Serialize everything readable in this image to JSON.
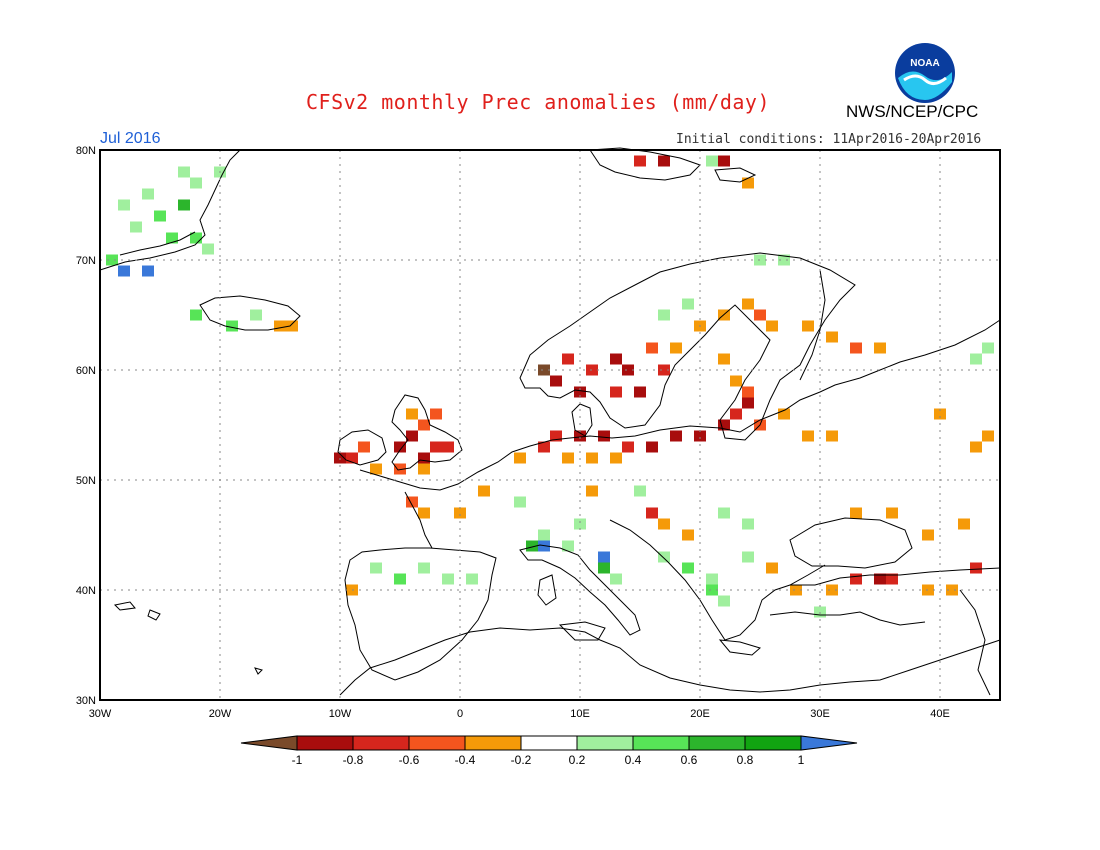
{
  "header": {
    "title": "CFSv2 monthly Prec anomalies (mm/day)",
    "agency": "NWS/NCEP/CPC",
    "month": "Jul 2016",
    "initial_conditions": "Initial conditions: 11Apr2016-20Apr2016",
    "logo_text": "NOAA"
  },
  "axes": {
    "lat_labels": [
      "80N",
      "70N",
      "60N",
      "50N",
      "40N",
      "30N"
    ],
    "lon_labels": [
      "30W",
      "20W",
      "10W",
      "0",
      "10E",
      "20E",
      "30E",
      "40E"
    ]
  },
  "colorbar": {
    "labels": [
      "-1",
      "-0.8",
      "-0.6",
      "-0.4",
      "-0.2",
      "0.2",
      "0.4",
      "0.6",
      "0.8",
      "1"
    ],
    "colors": [
      "#7a4a2a",
      "#a80d0d",
      "#d6261d",
      "#f4551e",
      "#f59a09",
      "#ffffff",
      "#a0ef9e",
      "#57e457",
      "#2cb52c",
      "#11a411",
      "#3a78d9"
    ]
  },
  "map_data": {
    "extent": {
      "lon": [
        -30,
        45
      ],
      "lat": [
        30,
        80
      ]
    },
    "anomaly_cells": [
      {
        "lon": -28,
        "lat": 69,
        "level": 10
      },
      {
        "lon": -26,
        "lat": 69,
        "level": 10
      },
      {
        "lon": -29,
        "lat": 70,
        "level": 7
      },
      {
        "lon": -28,
        "lat": 75,
        "level": 6
      },
      {
        "lon": -26,
        "lat": 76,
        "level": 6
      },
      {
        "lon": -25,
        "lat": 74,
        "level": 7
      },
      {
        "lon": -23,
        "lat": 75,
        "level": 8
      },
      {
        "lon": -22,
        "lat": 77,
        "level": 6
      },
      {
        "lon": -24,
        "lat": 72,
        "level": 7
      },
      {
        "lon": -22,
        "lat": 72,
        "level": 7
      },
      {
        "lon": -21,
        "lat": 71,
        "level": 6
      },
      {
        "lon": -27,
        "lat": 73,
        "level": 6
      },
      {
        "lon": -20,
        "lat": 78,
        "level": 6
      },
      {
        "lon": -23,
        "lat": 78,
        "level": 6
      },
      {
        "lon": -22,
        "lat": 65,
        "level": 7
      },
      {
        "lon": -19,
        "lat": 64,
        "level": 7
      },
      {
        "lon": -17,
        "lat": 65,
        "level": 6
      },
      {
        "lon": -15,
        "lat": 64,
        "level": 4
      },
      {
        "lon": -14,
        "lat": 64,
        "level": 4
      },
      {
        "lon": -9,
        "lat": 52,
        "level": 2
      },
      {
        "lon": -8,
        "lat": 53,
        "level": 3
      },
      {
        "lon": -10,
        "lat": 52,
        "level": 1
      },
      {
        "lon": -7,
        "lat": 51,
        "level": 4
      },
      {
        "lon": -5,
        "lat": 53,
        "level": 1
      },
      {
        "lon": -4,
        "lat": 54,
        "level": 1
      },
      {
        "lon": -3,
        "lat": 55,
        "level": 3
      },
      {
        "lon": -2,
        "lat": 53,
        "level": 2
      },
      {
        "lon": -3,
        "lat": 52,
        "level": 1
      },
      {
        "lon": -1,
        "lat": 53,
        "level": 2
      },
      {
        "lon": -4,
        "lat": 56,
        "level": 4
      },
      {
        "lon": -2,
        "lat": 56,
        "level": 3
      },
      {
        "lon": -5,
        "lat": 51,
        "level": 3
      },
      {
        "lon": -3,
        "lat": 51,
        "level": 4
      },
      {
        "lon": 5,
        "lat": 52,
        "level": 4
      },
      {
        "lon": 7,
        "lat": 53,
        "level": 2
      },
      {
        "lon": 8,
        "lat": 54,
        "level": 2
      },
      {
        "lon": 10,
        "lat": 54,
        "level": 1
      },
      {
        "lon": 12,
        "lat": 54,
        "level": 1
      },
      {
        "lon": 14,
        "lat": 53,
        "level": 2
      },
      {
        "lon": 16,
        "lat": 53,
        "level": 1
      },
      {
        "lon": 18,
        "lat": 54,
        "level": 1
      },
      {
        "lon": 20,
        "lat": 54,
        "level": 1
      },
      {
        "lon": 22,
        "lat": 55,
        "level": 1
      },
      {
        "lon": 23,
        "lat": 56,
        "level": 2
      },
      {
        "lon": 24,
        "lat": 57,
        "level": 1
      },
      {
        "lon": 25,
        "lat": 55,
        "level": 3
      },
      {
        "lon": 11,
        "lat": 52,
        "level": 4
      },
      {
        "lon": 9,
        "lat": 52,
        "level": 4
      },
      {
        "lon": 13,
        "lat": 52,
        "level": 4
      },
      {
        "lon": 7,
        "lat": 60,
        "level": 0
      },
      {
        "lon": 8,
        "lat": 59,
        "level": 1
      },
      {
        "lon": 9,
        "lat": 61,
        "level": 2
      },
      {
        "lon": 11,
        "lat": 60,
        "level": 2
      },
      {
        "lon": 13,
        "lat": 61,
        "level": 1
      },
      {
        "lon": 14,
        "lat": 60,
        "level": 1
      },
      {
        "lon": 15,
        "lat": 58,
        "level": 1
      },
      {
        "lon": 13,
        "lat": 58,
        "level": 2
      },
      {
        "lon": 10,
        "lat": 58,
        "level": 1
      },
      {
        "lon": 17,
        "lat": 60,
        "level": 2
      },
      {
        "lon": 16,
        "lat": 62,
        "level": 3
      },
      {
        "lon": 18,
        "lat": 62,
        "level": 4
      },
      {
        "lon": 20,
        "lat": 64,
        "level": 4
      },
      {
        "lon": 22,
        "lat": 65,
        "level": 4
      },
      {
        "lon": 24,
        "lat": 66,
        "level": 4
      },
      {
        "lon": 25,
        "lat": 65,
        "level": 3
      },
      {
        "lon": 26,
        "lat": 64,
        "level": 4
      },
      {
        "lon": 29,
        "lat": 64,
        "level": 4
      },
      {
        "lon": 31,
        "lat": 63,
        "level": 4
      },
      {
        "lon": 33,
        "lat": 62,
        "level": 3
      },
      {
        "lon": 35,
        "lat": 62,
        "level": 4
      },
      {
        "lon": 22,
        "lat": 61,
        "level": 4
      },
      {
        "lon": 23,
        "lat": 59,
        "level": 4
      },
      {
        "lon": 24,
        "lat": 58,
        "level": 3
      },
      {
        "lon": 27,
        "lat": 56,
        "level": 4
      },
      {
        "lon": 29,
        "lat": 54,
        "level": 4
      },
      {
        "lon": 31,
        "lat": 54,
        "level": 4
      },
      {
        "lon": 24,
        "lat": 77,
        "level": 4
      },
      {
        "lon": 22,
        "lat": 79,
        "level": 1
      },
      {
        "lon": 15,
        "lat": 79,
        "level": 2
      },
      {
        "lon": 17,
        "lat": 79,
        "level": 1
      },
      {
        "lon": 0,
        "lat": 47,
        "level": 4
      },
      {
        "lon": 2,
        "lat": 49,
        "level": 4
      },
      {
        "lon": -4,
        "lat": 48,
        "level": 3
      },
      {
        "lon": -3,
        "lat": 47,
        "level": 4
      },
      {
        "lon": 11,
        "lat": 49,
        "level": 4
      },
      {
        "lon": 16,
        "lat": 47,
        "level": 2
      },
      {
        "lon": 17,
        "lat": 46,
        "level": 4
      },
      {
        "lon": 19,
        "lat": 45,
        "level": 4
      },
      {
        "lon": 26,
        "lat": 42,
        "level": 4
      },
      {
        "lon": 28,
        "lat": 40,
        "level": 4
      },
      {
        "lon": 31,
        "lat": 40,
        "level": 4
      },
      {
        "lon": 33,
        "lat": 41,
        "level": 2
      },
      {
        "lon": 35,
        "lat": 41,
        "level": 1
      },
      {
        "lon": 36,
        "lat": 41,
        "level": 2
      },
      {
        "lon": 39,
        "lat": 40,
        "level": 4
      },
      {
        "lon": 41,
        "lat": 40,
        "level": 4
      },
      {
        "lon": 43,
        "lat": 42,
        "level": 2
      },
      {
        "lon": 39,
        "lat": 45,
        "level": 4
      },
      {
        "lon": 42,
        "lat": 46,
        "level": 4
      },
      {
        "lon": 44,
        "lat": 54,
        "level": 4
      },
      {
        "lon": 43,
        "lat": 53,
        "level": 4
      },
      {
        "lon": 40,
        "lat": 56,
        "level": 4
      },
      {
        "lon": 33,
        "lat": 47,
        "level": 4
      },
      {
        "lon": -9,
        "lat": 40,
        "level": 4
      },
      {
        "lon": 36,
        "lat": 47,
        "level": 4
      },
      {
        "lon": -7,
        "lat": 42,
        "level": 6
      },
      {
        "lon": -5,
        "lat": 41,
        "level": 7
      },
      {
        "lon": -3,
        "lat": 42,
        "level": 6
      },
      {
        "lon": -1,
        "lat": 41,
        "level": 6
      },
      {
        "lon": 1,
        "lat": 41,
        "level": 6
      },
      {
        "lon": -2,
        "lat": 40,
        "level": 5
      },
      {
        "lon": 3,
        "lat": 45,
        "level": 5
      },
      {
        "lon": 5,
        "lat": 48,
        "level": 6
      },
      {
        "lon": 7,
        "lat": 45,
        "level": 6
      },
      {
        "lon": 6,
        "lat": 44,
        "level": 8
      },
      {
        "lon": 7,
        "lat": 44,
        "level": 10
      },
      {
        "lon": 9,
        "lat": 44,
        "level": 6
      },
      {
        "lon": 12,
        "lat": 42,
        "level": 8
      },
      {
        "lon": 12,
        "lat": 43,
        "level": 10
      },
      {
        "lon": 13,
        "lat": 41,
        "level": 6
      },
      {
        "lon": 17,
        "lat": 43,
        "level": 6
      },
      {
        "lon": 19,
        "lat": 42,
        "level": 7
      },
      {
        "lon": 21,
        "lat": 41,
        "level": 6
      },
      {
        "lon": 21,
        "lat": 40,
        "level": 7
      },
      {
        "lon": 22,
        "lat": 39,
        "level": 6
      },
      {
        "lon": 24,
        "lat": 43,
        "level": 6
      },
      {
        "lon": 22,
        "lat": 44,
        "level": 5
      },
      {
        "lon": 24,
        "lat": 46,
        "level": 6
      },
      {
        "lon": 22,
        "lat": 47,
        "level": 6
      },
      {
        "lon": 19,
        "lat": 49,
        "level": 5
      },
      {
        "lon": 15,
        "lat": 49,
        "level": 6
      },
      {
        "lon": 10,
        "lat": 46,
        "level": 6
      },
      {
        "lon": 8,
        "lat": 50,
        "level": 5
      },
      {
        "lon": 27,
        "lat": 48,
        "level": 5
      },
      {
        "lon": 30,
        "lat": 38,
        "level": 6
      },
      {
        "lon": 36,
        "lat": 55,
        "level": 5
      },
      {
        "lon": 40,
        "lat": 60,
        "level": 5
      },
      {
        "lon": 43,
        "lat": 61,
        "level": 6
      },
      {
        "lon": 44,
        "lat": 62,
        "level": 6
      },
      {
        "lon": 44,
        "lat": 63,
        "level": 5
      },
      {
        "lon": 35,
        "lat": 52,
        "level": 5
      },
      {
        "lon": 17,
        "lat": 65,
        "level": 6
      },
      {
        "lon": 19,
        "lat": 66,
        "level": 6
      },
      {
        "lon": 14,
        "lat": 64,
        "level": 5
      },
      {
        "lon": 25,
        "lat": 70,
        "level": 6
      },
      {
        "lon": 27,
        "lat": 70,
        "level": 6
      },
      {
        "lon": 21,
        "lat": 79,
        "level": 6
      },
      {
        "lon": 24,
        "lat": 79,
        "level": 5
      }
    ]
  }
}
